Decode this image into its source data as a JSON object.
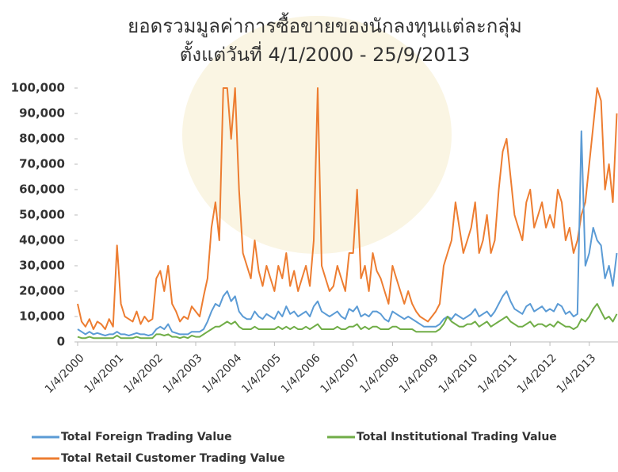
{
  "chart_data": {
    "type": "line",
    "title": [
      "ยอดรวมมูลค่าการซื้อขายของนักลงทุนแต่ละกลุ่ม",
      "ตั้งแต่วันที่  4/1/2000  - 25/9/2013"
    ],
    "x": [
      2000,
      2000.1,
      2000.2,
      2000.3,
      2000.4,
      2000.5,
      2000.6,
      2000.7,
      2000.8,
      2000.9,
      2001,
      2001.1,
      2001.2,
      2001.3,
      2001.4,
      2001.5,
      2001.6,
      2001.7,
      2001.8,
      2001.9,
      2002,
      2002.1,
      2002.2,
      2002.3,
      2002.4,
      2002.5,
      2002.6,
      2002.7,
      2002.8,
      2002.9,
      2003,
      2003.1,
      2003.2,
      2003.3,
      2003.4,
      2003.5,
      2003.6,
      2003.7,
      2003.8,
      2003.9,
      2004,
      2004.1,
      2004.2,
      2004.3,
      2004.4,
      2004.5,
      2004.6,
      2004.7,
      2004.8,
      2004.9,
      2005,
      2005.1,
      2005.2,
      2005.3,
      2005.4,
      2005.5,
      2005.6,
      2005.7,
      2005.8,
      2005.9,
      2006,
      2006.1,
      2006.2,
      2006.3,
      2006.4,
      2006.5,
      2006.6,
      2006.7,
      2006.8,
      2006.9,
      2007,
      2007.1,
      2007.2,
      2007.3,
      2007.4,
      2007.5,
      2007.6,
      2007.7,
      2007.8,
      2007.9,
      2008,
      2008.1,
      2008.2,
      2008.3,
      2008.4,
      2008.5,
      2008.6,
      2008.7,
      2008.8,
      2008.9,
      2009,
      2009.1,
      2009.2,
      2009.3,
      2009.4,
      2009.5,
      2009.6,
      2009.7,
      2009.8,
      2009.9,
      2010,
      2010.1,
      2010.2,
      2010.3,
      2010.4,
      2010.5,
      2010.6,
      2010.7,
      2010.8,
      2010.9,
      2011,
      2011.1,
      2011.2,
      2011.3,
      2011.4,
      2011.5,
      2011.6,
      2011.7,
      2011.8,
      2011.9,
      2012,
      2012.1,
      2012.2,
      2012.3,
      2012.4,
      2012.5,
      2012.6,
      2012.7,
      2012.8,
      2012.9,
      2013,
      2013.1,
      2013.2,
      2013.3,
      2013.4,
      2013.5,
      2013.6,
      2013.7
    ],
    "series": [
      {
        "name": "Total Foreign Trading Value",
        "color": "#5b9bd5",
        "values": [
          5000,
          4000,
          3000,
          4000,
          3000,
          3500,
          3000,
          2500,
          3000,
          3000,
          4000,
          3000,
          3000,
          2500,
          3000,
          3500,
          3000,
          3000,
          2500,
          3000,
          5000,
          6000,
          5000,
          7000,
          4000,
          3500,
          3000,
          3000,
          3000,
          4000,
          4000,
          4000,
          5000,
          8000,
          12000,
          15000,
          14000,
          18000,
          20000,
          16000,
          18000,
          12000,
          10000,
          9000,
          9000,
          12000,
          10000,
          9000,
          11000,
          10000,
          9000,
          12000,
          10000,
          14000,
          11000,
          12000,
          10000,
          11000,
          12000,
          10000,
          14000,
          16000,
          12000,
          11000,
          10000,
          11000,
          12000,
          10000,
          9000,
          13000,
          12000,
          14000,
          10000,
          11000,
          10000,
          12000,
          12000,
          11000,
          9000,
          8000,
          12000,
          11000,
          10000,
          9000,
          10000,
          9000,
          8000,
          7000,
          6000,
          6000,
          6000,
          6000,
          7000,
          9000,
          10000,
          9000,
          11000,
          10000,
          9000,
          10000,
          11000,
          13000,
          10000,
          11000,
          12000,
          10000,
          12000,
          15000,
          18000,
          20000,
          16000,
          13000,
          12000,
          11000,
          14000,
          15000,
          12000,
          13000,
          14000,
          12000,
          13000,
          12000,
          15000,
          14000,
          11000,
          12000,
          10000,
          11000,
          83000,
          30000,
          35000,
          45000,
          40000,
          38000,
          25000,
          30000,
          22000,
          35000
        ]
      },
      {
        "name": "Total Institutional Trading Value",
        "color": "#70ad47",
        "values": [
          2000,
          1500,
          1500,
          2000,
          1500,
          1500,
          1500,
          1500,
          1500,
          1500,
          2500,
          1500,
          1500,
          1500,
          1500,
          2000,
          1500,
          1500,
          1500,
          1500,
          3000,
          3000,
          2500,
          3000,
          2000,
          2000,
          1500,
          2000,
          1500,
          2500,
          2000,
          2000,
          3000,
          4000,
          5000,
          6000,
          6000,
          7000,
          8000,
          7000,
          8000,
          6000,
          5000,
          5000,
          5000,
          6000,
          5000,
          5000,
          5000,
          5000,
          5000,
          6000,
          5000,
          6000,
          5000,
          6000,
          5000,
          5000,
          6000,
          5000,
          6000,
          7000,
          5000,
          5000,
          5000,
          5000,
          6000,
          5000,
          5000,
          6000,
          6000,
          7000,
          5000,
          6000,
          5000,
          6000,
          6000,
          5000,
          5000,
          5000,
          6000,
          6000,
          5000,
          5000,
          5000,
          5000,
          4000,
          4000,
          4000,
          4000,
          4000,
          4000,
          5000,
          7000,
          10000,
          8000,
          7000,
          6000,
          6000,
          7000,
          7000,
          8000,
          6000,
          7000,
          8000,
          6000,
          7000,
          8000,
          9000,
          10000,
          8000,
          7000,
          6000,
          6000,
          7000,
          8000,
          6000,
          7000,
          7000,
          6000,
          7000,
          6000,
          8000,
          7000,
          6000,
          6000,
          5000,
          6000,
          9000,
          8000,
          10000,
          13000,
          15000,
          12000,
          9000,
          10000,
          8000,
          11000
        ]
      },
      {
        "name": "Total Retail Customer Trading Value",
        "color": "#ed7d31",
        "values": [
          15000,
          8000,
          6000,
          9000,
          5000,
          8000,
          7000,
          5000,
          9000,
          6000,
          38000,
          15000,
          10000,
          9000,
          8000,
          12000,
          7000,
          10000,
          8000,
          9000,
          25000,
          28000,
          20000,
          30000,
          15000,
          12000,
          8000,
          10000,
          9000,
          14000,
          12000,
          10000,
          18000,
          25000,
          45000,
          55000,
          40000,
          100000,
          100000,
          80000,
          100000,
          60000,
          35000,
          30000,
          25000,
          40000,
          28000,
          22000,
          30000,
          25000,
          20000,
          30000,
          25000,
          35000,
          22000,
          28000,
          20000,
          25000,
          30000,
          22000,
          40000,
          100000,
          30000,
          25000,
          20000,
          22000,
          30000,
          25000,
          20000,
          35000,
          35000,
          60000,
          25000,
          30000,
          20000,
          35000,
          28000,
          25000,
          20000,
          15000,
          30000,
          25000,
          20000,
          15000,
          20000,
          15000,
          12000,
          10000,
          9000,
          8000,
          10000,
          12000,
          15000,
          30000,
          35000,
          40000,
          55000,
          45000,
          35000,
          40000,
          45000,
          55000,
          35000,
          40000,
          50000,
          35000,
          40000,
          60000,
          75000,
          80000,
          65000,
          50000,
          45000,
          40000,
          55000,
          60000,
          45000,
          50000,
          55000,
          45000,
          50000,
          45000,
          60000,
          55000,
          40000,
          45000,
          35000,
          40000,
          50000,
          55000,
          70000,
          85000,
          100000,
          95000,
          60000,
          70000,
          55000,
          90000
        ]
      }
    ],
    "xlim": [
      2000,
      2013.73
    ],
    "xticks": [
      {
        "value": 2000,
        "label": "1/4/2000"
      },
      {
        "value": 2001,
        "label": "1/4/2001"
      },
      {
        "value": 2002,
        "label": "1/4/2002"
      },
      {
        "value": 2003,
        "label": "1/4/2003"
      },
      {
        "value": 2004,
        "label": "1/4/2004"
      },
      {
        "value": 2005,
        "label": "1/4/2005"
      },
      {
        "value": 2006,
        "label": "1/4/2006"
      },
      {
        "value": 2007,
        "label": "1/4/2007"
      },
      {
        "value": 2008,
        "label": "1/4/2008"
      },
      {
        "value": 2009,
        "label": "1/4/2009"
      },
      {
        "value": 2010,
        "label": "1/4/2010"
      },
      {
        "value": 2011,
        "label": "1/4/2011"
      },
      {
        "value": 2012,
        "label": "1/4/2012"
      },
      {
        "value": 2013,
        "label": "1/4/2013"
      }
    ],
    "ylim": [
      0,
      100000
    ],
    "yticks": [
      0,
      {
        "value": 10000,
        "label": "10,000"
      },
      {
        "value": 20000,
        "label": "20,000"
      },
      {
        "value": 30000,
        "label": "30,000"
      },
      {
        "value": 40000,
        "label": "40,000"
      },
      {
        "value": 50000,
        "label": "50,000"
      },
      {
        "value": 60000,
        "label": "60,000"
      },
      {
        "value": 70000,
        "label": "70,000"
      },
      {
        "value": 80000,
        "label": "80,000"
      },
      {
        "value": 90000,
        "label": "90,000"
      },
      {
        "value": {
          "value": 100000,
          "label": "100,000"
        },
        "label": "100,000"
      }
    ],
    "grid": false
  }
}
